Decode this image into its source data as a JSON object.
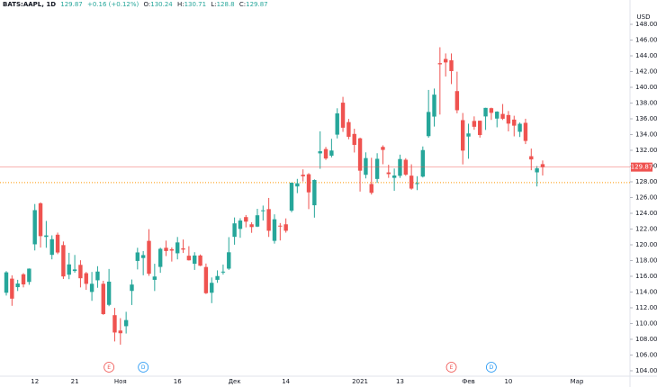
{
  "header": {
    "symbol": "BATS:AAPL, 1D",
    "change": "+0.16 (+0.12%)",
    "o": "O:",
    "h": "H:",
    "l": "L:",
    "c": "C:"
  },
  "chart_data": {
    "type": "candlestick",
    "currency": "USD",
    "up_color": "#26a69a",
    "down_color": "#ef5350",
    "grid": false,
    "categories": [
      null,
      null,
      null,
      null,
      null,
      "12",
      null,
      null,
      null,
      null,
      null,
      null,
      "21",
      null,
      null,
      null,
      null,
      null,
      null,
      null,
      "Ноя",
      null,
      null,
      null,
      null,
      null,
      null,
      null,
      null,
      null,
      "16",
      null,
      null,
      null,
      null,
      null,
      null,
      null,
      null,
      null,
      "Дек",
      null,
      null,
      null,
      null,
      null,
      null,
      null,
      null,
      "14",
      null,
      null,
      null,
      null,
      null,
      null,
      null,
      null,
      null,
      null,
      null,
      null,
      "2021",
      null,
      null,
      null,
      null,
      null,
      null,
      "13",
      null,
      null,
      null,
      null,
      null,
      null,
      null,
      null,
      null,
      null,
      null,
      "Фев",
      null,
      null,
      null,
      null,
      null,
      null,
      "10",
      null,
      null,
      null,
      null,
      null,
      null,
      null,
      null,
      null,
      null,
      null,
      "Мар"
    ],
    "events": [
      null,
      null,
      null,
      null,
      null,
      null,
      null,
      null,
      null,
      null,
      null,
      null,
      null,
      null,
      null,
      null,
      null,
      null,
      "E",
      null,
      null,
      null,
      null,
      null,
      "D",
      null,
      null,
      null,
      null,
      null,
      null,
      null,
      null,
      null,
      null,
      null,
      null,
      null,
      null,
      null,
      null,
      null,
      null,
      null,
      null,
      null,
      null,
      null,
      null,
      null,
      null,
      null,
      null,
      null,
      null,
      null,
      null,
      null,
      null,
      null,
      null,
      null,
      null,
      null,
      null,
      null,
      null,
      null,
      null,
      null,
      null,
      null,
      null,
      null,
      null,
      null,
      null,
      null,
      "E",
      null,
      null,
      null,
      null,
      null,
      null,
      "D",
      null,
      null,
      null,
      null,
      null,
      null,
      null,
      null,
      null,
      null,
      null,
      null,
      null,
      null,
      null
    ],
    "open": [
      113.91,
      115.7,
      114.62,
      116.25,
      115.28,
      120.06,
      125.27,
      121.0,
      118.72,
      121.28,
      119.96,
      116.2,
      116.67,
      117.45,
      116.39,
      114.01,
      115.49,
      115.05,
      112.37,
      111.06,
      109.11,
      109.66,
      114.14,
      117.95,
      118.32,
      120.5,
      115.55,
      117.19,
      119.62,
      119.44,
      118.92,
      119.55,
      118.61,
      117.59,
      118.64,
      117.18,
      113.91,
      115.55,
      116.57,
      116.97,
      121.01,
      122.02,
      123.52,
      122.6,
      122.31,
      124.37,
      124.53,
      120.5,
      122.43,
      122.6,
      124.34,
      127.41,
      128.9,
      128.96,
      125.02,
      131.61,
      132.16,
      131.32,
      133.99,
      138.05,
      135.58,
      134.08,
      133.52,
      128.89,
      127.72,
      128.36,
      132.43,
      129.19,
      128.5,
      128.76,
      130.8,
      128.78,
      127.78,
      128.66,
      133.8,
      136.28,
      143.07,
      143.6,
      143.43,
      139.52,
      135.83,
      133.75,
      135.73,
      135.76,
      136.3,
      137.35,
      136.03,
      136.62,
      136.48,
      135.9,
      134.35,
      135.49,
      131.25,
      129.2,
      130.24,
      null,
      null,
      null,
      null,
      null,
      null
    ],
    "high": [
      116.65,
      116.12,
      115.55,
      116.4,
      117.0,
      125.18,
      125.39,
      123.03,
      121.2,
      121.55,
      120.42,
      118.98,
      118.71,
      118.04,
      116.55,
      116.55,
      117.28,
      115.43,
      116.93,
      111.99,
      110.68,
      111.49,
      115.59,
      119.62,
      119.2,
      121.99,
      117.59,
      119.63,
      120.53,
      119.67,
      120.99,
      120.67,
      119.82,
      119.06,
      118.77,
      117.62,
      115.85,
      116.75,
      117.49,
      120.97,
      123.47,
      123.37,
      123.78,
      122.86,
      124.57,
      124.98,
      125.95,
      123.87,
      122.76,
      123.35,
      127.9,
      128.37,
      129.58,
      129.1,
      128.31,
      134.41,
      132.43,
      133.46,
      137.34,
      138.79,
      135.99,
      134.74,
      133.61,
      131.74,
      131.05,
      131.63,
      132.63,
      130.17,
      129.69,
      131.45,
      131.0,
      130.22,
      128.71,
      132.49,
      139.67,
      139.85,
      145.09,
      144.3,
      144.3,
      141.99,
      136.74,
      135.38,
      136.31,
      135.77,
      137.4,
      137.42,
      136.96,
      137.88,
      136.99,
      136.39,
      135.53,
      136.01,
      132.22,
      130.0,
      130.71,
      null,
      null,
      null,
      null,
      null,
      null
    ],
    "low": [
      113.55,
      112.25,
      114.13,
      114.59,
      114.92,
      119.28,
      119.65,
      119.62,
      118.15,
      118.81,
      115.66,
      115.63,
      116.45,
      114.59,
      114.28,
      112.88,
      114.54,
      111.1,
      112.2,
      107.72,
      107.32,
      108.73,
      112.35,
      116.87,
      116.13,
      116.05,
      114.13,
      116.44,
      118.57,
      117.87,
      118.15,
      118.96,
      118.0,
      116.81,
      117.29,
      113.75,
      112.59,
      115.17,
      116.22,
      116.81,
      120.01,
      120.89,
      122.21,
      121.52,
      122.25,
      123.09,
      121.0,
      120.15,
      120.55,
      121.54,
      124.13,
      126.56,
      128.04,
      124.53,
      123.45,
      129.65,
      130.78,
      131.1,
      133.51,
      134.34,
      133.4,
      131.72,
      126.76,
      128.43,
      126.38,
      127.86,
      130.23,
      128.5,
      126.86,
      128.49,
      128.76,
      127.0,
      126.94,
      128.55,
      133.59,
      135.02,
      136.54,
      141.37,
      140.41,
      136.7,
      130.21,
      130.93,
      134.61,
      133.61,
      134.59,
      135.86,
      134.92,
      135.85,
      134.4,
      133.77,
      133.69,
      132.79,
      129.47,
      127.41,
      128.8,
      null,
      null,
      null,
      null,
      null,
      null
    ],
    "close": [
      116.5,
      113.16,
      115.08,
      114.97,
      116.97,
      124.4,
      121.1,
      121.19,
      120.71,
      119.02,
      115.98,
      117.51,
      116.87,
      115.75,
      115.04,
      115.05,
      116.6,
      111.2,
      115.32,
      108.86,
      108.77,
      110.44,
      114.95,
      119.03,
      118.69,
      116.32,
      115.97,
      119.49,
      119.21,
      119.26,
      120.3,
      119.39,
      118.03,
      118.64,
      117.34,
      113.85,
      115.17,
      116.03,
      116.59,
      119.05,
      122.72,
      123.08,
      122.94,
      122.25,
      123.75,
      124.38,
      121.78,
      123.24,
      122.41,
      121.78,
      127.88,
      127.81,
      128.7,
      126.66,
      128.23,
      131.88,
      130.96,
      131.97,
      136.69,
      134.87,
      133.72,
      132.69,
      129.41,
      131.01,
      126.6,
      130.92,
      132.05,
      128.98,
      128.8,
      130.89,
      128.91,
      127.14,
      127.83,
      132.03,
      136.87,
      139.07,
      142.92,
      143.16,
      142.06,
      137.09,
      131.96,
      134.14,
      134.99,
      133.94,
      137.39,
      136.76,
      136.91,
      136.01,
      135.39,
      135.13,
      135.37,
      133.19,
      130.84,
      129.71,
      129.87,
      null,
      null,
      null,
      null,
      null,
      null
    ],
    "hlines": [
      {
        "value": 127.9,
        "color": "#ff9800"
      }
    ],
    "ylim": [
      103.31,
      151.09
    ],
    "yticks": [
      {
        "value": 104,
        "label": "104.00"
      },
      {
        "value": 106,
        "label": "106.00"
      },
      {
        "value": 108,
        "label": "108.00"
      },
      {
        "value": 110,
        "label": "110.00"
      },
      {
        "value": 112,
        "label": "112.00"
      },
      {
        "value": 114,
        "label": "114.00"
      },
      {
        "value": 116,
        "label": "116.00"
      },
      {
        "value": 118,
        "label": "118.00"
      },
      {
        "value": 120,
        "label": "120.00"
      },
      {
        "value": 122,
        "label": "122.00"
      },
      {
        "value": 124,
        "label": "124.00"
      },
      {
        "value": 126,
        "label": "126.00"
      },
      {
        "value": 128,
        "label": "128.00"
      },
      {
        "value": 130,
        "label": "130.00"
      },
      {
        "value": 132,
        "label": "132.00"
      },
      {
        "value": 134,
        "label": "134.00"
      },
      {
        "value": 136,
        "label": "136.00"
      },
      {
        "value": 138,
        "label": "138.00"
      },
      {
        "value": 140,
        "label": "140.00"
      },
      {
        "value": 142,
        "label": "142.00"
      },
      {
        "value": 144,
        "label": "144.00"
      },
      {
        "value": 146,
        "label": "146.00"
      },
      {
        "value": 148,
        "label": "148.00"
      }
    ]
  }
}
